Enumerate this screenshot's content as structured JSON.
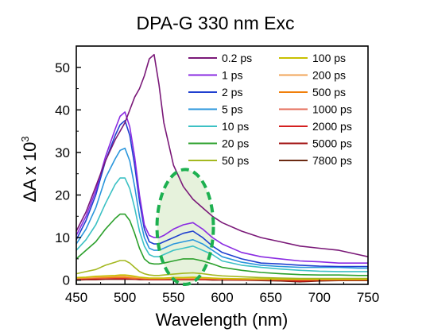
{
  "chart_data": {
    "type": "line",
    "title": "DPA-G 330 nm Exc",
    "xlabel": "Wavelength (nm)",
    "ylabel_main": "ΔA x 10",
    "ylabel_exp": "3",
    "xlim": [
      450,
      750
    ],
    "ylim": [
      -1,
      55
    ],
    "xticks": [
      450,
      500,
      550,
      600,
      650,
      700,
      750
    ],
    "yticks": [
      0,
      10,
      20,
      30,
      40,
      50
    ],
    "x_major_ticks": [
      "450",
      "500",
      "550",
      "600",
      "650",
      "700",
      "750"
    ],
    "y_major_ticks": [
      "0",
      "10",
      "20",
      "30",
      "40",
      "50"
    ],
    "grid": false,
    "legend_position": "top-right",
    "x": [
      450,
      460,
      470,
      480,
      490,
      495,
      500,
      505,
      510,
      515,
      520,
      525,
      530,
      535,
      540,
      550,
      560,
      570,
      580,
      590,
      600,
      620,
      640,
      660,
      680,
      700,
      720,
      740,
      750
    ],
    "series": [
      {
        "name": "0.2 ps",
        "color": "#7a1878",
        "values": [
          11.5,
          16,
          22,
          28,
          33,
          35,
          37,
          40,
          43,
          45,
          48,
          52,
          53,
          46,
          37,
          27,
          22,
          19,
          17,
          15,
          13.5,
          11.5,
          10,
          9,
          8,
          7.5,
          7,
          6,
          5.5
        ]
      },
      {
        "name": "1 ps",
        "color": "#8a2be2",
        "values": [
          10.5,
          15,
          21,
          29,
          35.5,
          38.5,
          39.5,
          36,
          29,
          20,
          13,
          10.5,
          10,
          10,
          10.5,
          12,
          13,
          13.5,
          12,
          10,
          8.5,
          6.5,
          5.5,
          5,
          4.5,
          4.3,
          4,
          4,
          4
        ]
      },
      {
        "name": "2 ps",
        "color": "#1f3fcf",
        "values": [
          9.5,
          14,
          20,
          28,
          34,
          36.5,
          37.5,
          34,
          27,
          18.5,
          12,
          9,
          8.5,
          8.5,
          9,
          10,
          11,
          11.5,
          10,
          8,
          6.5,
          5,
          4,
          3.8,
          3.5,
          3.3,
          3.2,
          3.2,
          3.2
        ]
      },
      {
        "name": "5 ps",
        "color": "#2a96dc",
        "values": [
          8.5,
          12,
          17,
          24,
          28.5,
          30.5,
          31,
          28,
          22,
          15,
          10,
          7.5,
          7,
          7,
          7.5,
          8.5,
          9,
          9.5,
          8.5,
          7,
          5.5,
          4.2,
          3.5,
          3.2,
          3,
          3,
          3,
          2.8,
          2.8
        ]
      },
      {
        "name": "10 ps",
        "color": "#3cc1c4",
        "values": [
          7,
          9.5,
          13,
          18,
          22.5,
          24,
          24,
          21.5,
          17,
          11.5,
          8,
          6,
          5.5,
          5.5,
          6,
          7,
          7.5,
          8,
          7,
          6,
          4.5,
          3.5,
          3,
          2.6,
          2.3,
          2.1,
          2,
          2,
          2
        ]
      },
      {
        "name": "20 ps",
        "color": "#2ca02c",
        "values": [
          5,
          7,
          9,
          12,
          14.5,
          15.5,
          15.5,
          14,
          11,
          7.5,
          5,
          4,
          3.8,
          3.8,
          4,
          4.5,
          5,
          5,
          4.5,
          3.8,
          3,
          2.3,
          1.8,
          1.5,
          1.3,
          1.2,
          1.2,
          1.1,
          1.1
        ]
      },
      {
        "name": "50 ps",
        "color": "#a4b820",
        "values": [
          1.5,
          2,
          2.5,
          3.5,
          4.2,
          4.6,
          4.6,
          4,
          3,
          2,
          1.5,
          1.2,
          1.1,
          1.1,
          1.2,
          1.4,
          1.6,
          1.7,
          1.5,
          1.2,
          1,
          0.8,
          0.6,
          0.5,
          0.4,
          0.4,
          0.4,
          0.4,
          0.4
        ]
      },
      {
        "name": "100 ps",
        "color": "#c8c000",
        "values": [
          0.6,
          0.7,
          0.9,
          1,
          1.1,
          1.2,
          1.2,
          1.1,
          0.9,
          0.7,
          0.6,
          0.5,
          0.5,
          0.5,
          0.5,
          0.6,
          0.6,
          0.7,
          0.6,
          0.5,
          0.4,
          0.3,
          0.3,
          0.2,
          0.2,
          0.2,
          0.2,
          0.2,
          0.2
        ]
      },
      {
        "name": "200 ps",
        "color": "#f2a65a",
        "values": [
          0.5,
          0.6,
          0.7,
          0.8,
          0.9,
          0.9,
          0.9,
          0.8,
          0.7,
          0.6,
          0.5,
          0.4,
          0.4,
          0.4,
          0.4,
          0.5,
          0.5,
          0.5,
          0.5,
          0.4,
          0.3,
          0.3,
          0.2,
          0.2,
          0.2,
          0.2,
          0.2,
          0.2,
          0.2
        ]
      },
      {
        "name": "500 ps",
        "color": "#f07f0a",
        "values": [
          0.4,
          0.5,
          0.6,
          0.6,
          0.7,
          0.7,
          0.7,
          0.6,
          0.5,
          0.5,
          0.4,
          0.3,
          0.3,
          0.3,
          0.3,
          0.4,
          0.4,
          0.4,
          0.4,
          0.3,
          0.3,
          0.2,
          0.2,
          0.2,
          0.1,
          0.1,
          0.1,
          0.1,
          0.1
        ]
      },
      {
        "name": "1000 ps",
        "color": "#e46c5a",
        "values": [
          0.3,
          0.4,
          0.5,
          0.5,
          0.6,
          0.6,
          0.6,
          0.5,
          0.4,
          0.4,
          0.3,
          0.3,
          0.3,
          0.3,
          0.3,
          0.3,
          0.3,
          0.3,
          0.3,
          0.3,
          0.2,
          0.2,
          0.1,
          0.1,
          0.1,
          0.1,
          0.1,
          0.1,
          0.1
        ]
      },
      {
        "name": "2000 ps",
        "color": "#d42020",
        "values": [
          0.2,
          0.3,
          0.3,
          0.4,
          0.4,
          0.4,
          0.4,
          0.4,
          0.3,
          0.3,
          0.2,
          0.2,
          0.2,
          0.2,
          0.2,
          0.2,
          0.2,
          0.2,
          0.2,
          0.2,
          0.1,
          0.1,
          0.1,
          0.0,
          -0.2,
          0.0,
          0.0,
          0.0,
          0.0
        ]
      },
      {
        "name": "5000 ps",
        "color": "#a01010",
        "values": [
          0.1,
          0.2,
          0.2,
          0.3,
          0.3,
          0.3,
          0.3,
          0.3,
          0.2,
          0.2,
          0.2,
          0.1,
          0.1,
          0.1,
          0.1,
          0.1,
          0.1,
          0.1,
          0.1,
          0.1,
          0.1,
          0.0,
          0.0,
          -0.1,
          -0.3,
          -0.1,
          0.0,
          0.0,
          0.0
        ]
      },
      {
        "name": "7800 ps",
        "color": "#6b2a12",
        "values": [
          0.0,
          0.1,
          0.1,
          0.2,
          0.2,
          0.2,
          0.2,
          0.2,
          0.2,
          0.1,
          0.1,
          0.1,
          0.1,
          0.1,
          0.1,
          0.1,
          0.1,
          0.1,
          0.1,
          0.0,
          0.0,
          0.0,
          -0.1,
          -0.2,
          -0.4,
          -0.2,
          -0.1,
          -0.1,
          -0.1
        ]
      }
    ],
    "annotation": {
      "shape": "dashed-ellipse",
      "color": "#1db050",
      "fill": "#e6f2dc",
      "center_x": 562,
      "center_y": 12.5,
      "radius_x": 29,
      "radius_y": 13.5
    }
  }
}
